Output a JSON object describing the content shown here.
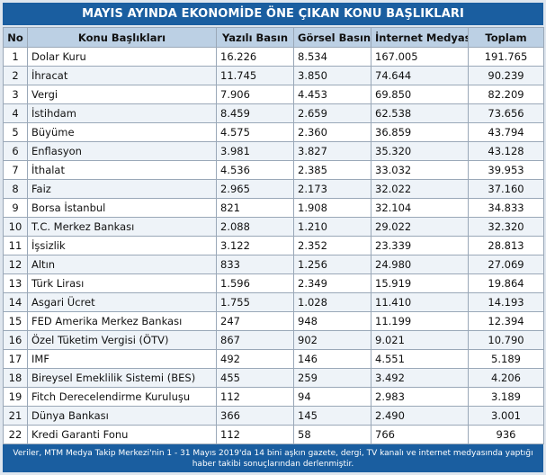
{
  "title": "MAYIS AYINDA EKONOMİDE ÖNE ÇIKAN KONU BAŞLIKLARI",
  "headers": {
    "no": "No",
    "topic": "Konu Başlıkları",
    "print": "Yazılı Basın",
    "visual": "Görsel Basın",
    "internet": "İnternet Medyası",
    "total": "Toplam"
  },
  "rows": [
    {
      "no": "1",
      "topic": "Dolar Kuru",
      "print": "16.226",
      "visual": "8.534",
      "internet": "167.005",
      "total": "191.765"
    },
    {
      "no": "2",
      "topic": "İhracat",
      "print": "11.745",
      "visual": "3.850",
      "internet": "74.644",
      "total": "90.239"
    },
    {
      "no": "3",
      "topic": "Vergi",
      "print": "7.906",
      "visual": "4.453",
      "internet": "69.850",
      "total": "82.209"
    },
    {
      "no": "4",
      "topic": "İstihdam",
      "print": "8.459",
      "visual": "2.659",
      "internet": "62.538",
      "total": "73.656"
    },
    {
      "no": "5",
      "topic": "Büyüme",
      "print": "4.575",
      "visual": "2.360",
      "internet": "36.859",
      "total": "43.794"
    },
    {
      "no": "6",
      "topic": "Enflasyon",
      "print": "3.981",
      "visual": "3.827",
      "internet": "35.320",
      "total": "43.128"
    },
    {
      "no": "7",
      "topic": "İthalat",
      "print": "4.536",
      "visual": "2.385",
      "internet": "33.032",
      "total": "39.953"
    },
    {
      "no": "8",
      "topic": "Faiz",
      "print": "2.965",
      "visual": "2.173",
      "internet": "32.022",
      "total": "37.160"
    },
    {
      "no": "9",
      "topic": "Borsa İstanbul",
      "print": "821",
      "visual": "1.908",
      "internet": "32.104",
      "total": "34.833"
    },
    {
      "no": "10",
      "topic": "T.C. Merkez Bankası",
      "print": "2.088",
      "visual": "1.210",
      "internet": "29.022",
      "total": "32.320"
    },
    {
      "no": "11",
      "topic": "İşsizlik",
      "print": "3.122",
      "visual": "2.352",
      "internet": "23.339",
      "total": "28.813"
    },
    {
      "no": "12",
      "topic": "Altın",
      "print": "833",
      "visual": "1.256",
      "internet": "24.980",
      "total": "27.069"
    },
    {
      "no": "13",
      "topic": "Türk Lirası",
      "print": "1.596",
      "visual": "2.349",
      "internet": "15.919",
      "total": "19.864"
    },
    {
      "no": "14",
      "topic": "Asgari Ücret",
      "print": "1.755",
      "visual": "1.028",
      "internet": "11.410",
      "total": "14.193"
    },
    {
      "no": "15",
      "topic": "FED Amerika Merkez Bankası",
      "print": "247",
      "visual": "948",
      "internet": "11.199",
      "total": "12.394"
    },
    {
      "no": "16",
      "topic": "Özel Tüketim Vergisi (ÖTV)",
      "print": "867",
      "visual": "902",
      "internet": "9.021",
      "total": "10.790"
    },
    {
      "no": "17",
      "topic": "IMF",
      "print": "492",
      "visual": "146",
      "internet": "4.551",
      "total": "5.189"
    },
    {
      "no": "18",
      "topic": "Bireysel Emeklilik Sistemi (BES)",
      "print": "455",
      "visual": "259",
      "internet": "3.492",
      "total": "4.206"
    },
    {
      "no": "19",
      "topic": "Fitch Derecelendirme Kuruluşu",
      "print": "112",
      "visual": "94",
      "internet": "2.983",
      "total": "3.189"
    },
    {
      "no": "21",
      "topic": "Dünya Bankası",
      "print": "366",
      "visual": "145",
      "internet": "2.490",
      "total": "3.001"
    },
    {
      "no": "22",
      "topic": "Kredi Garanti Fonu",
      "print": "112",
      "visual": "58",
      "internet": "766",
      "total": "936"
    }
  ],
  "footer": "Veriler, MTM Medya Takip Merkezi'nin 1 - 31 Mayıs 2019'da 14 bini aşkın gazete, dergi, TV kanalı ve internet medyasında yaptığı haber takibi sonuçlarından derlenmiştir.",
  "colors": {
    "header_bar": "#1a5ea0",
    "column_header": "#bcd0e4"
  }
}
